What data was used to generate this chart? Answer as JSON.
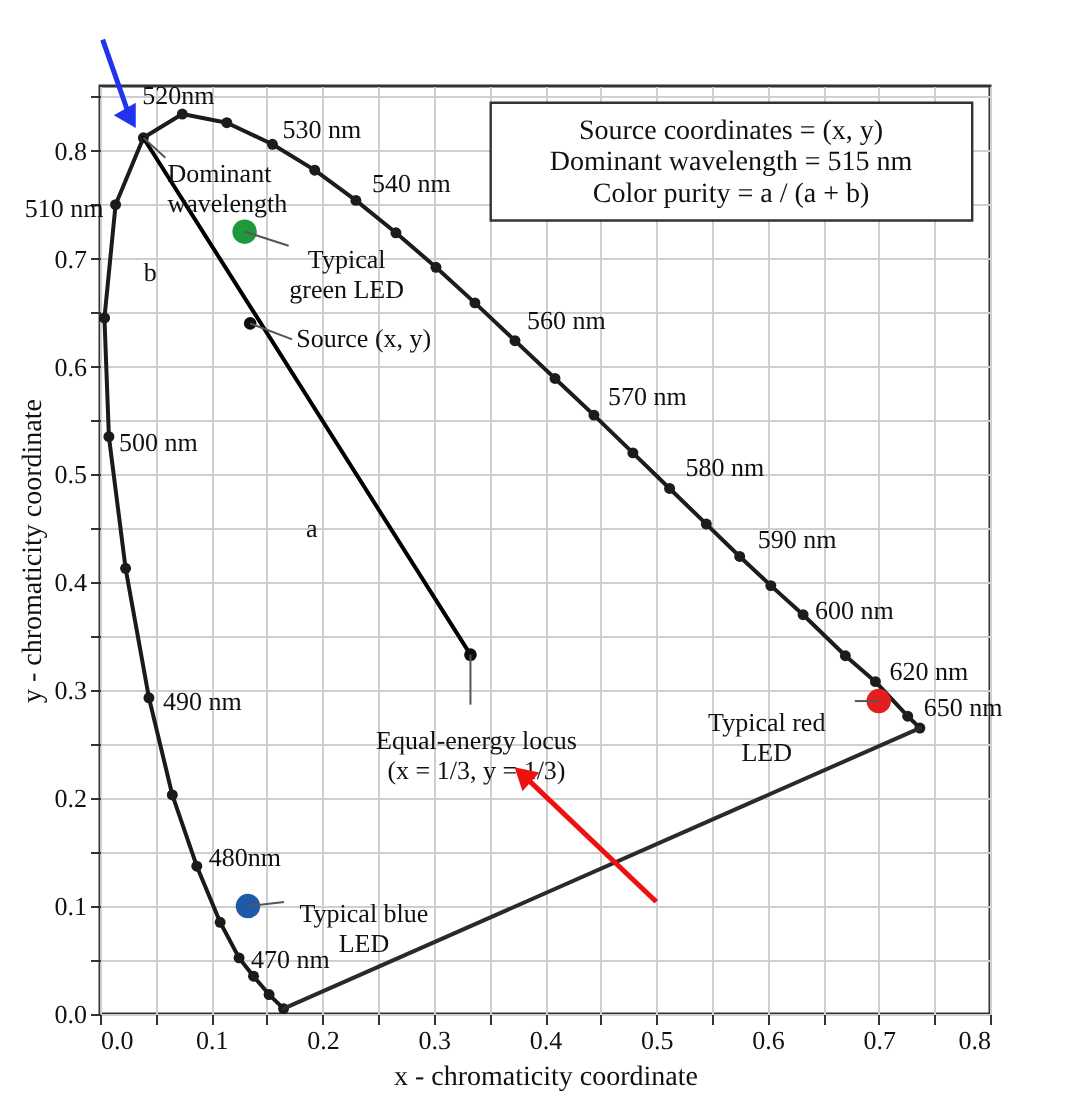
{
  "chart_data": {
    "type": "line",
    "xlabel": "x - chromaticity coordinate",
    "ylabel": "y - chromaticity coordinate",
    "xlim": [
      0,
      0.8
    ],
    "ylim": [
      0,
      0.86
    ],
    "xticks": [
      {
        "value": 0,
        "label": "0.0"
      },
      {
        "value": 0.05,
        "label": null
      },
      {
        "value": 0.1,
        "label": "0.1"
      },
      {
        "value": 0.15,
        "label": null
      },
      {
        "value": 0.2,
        "label": "0.2"
      },
      {
        "value": 0.25,
        "label": null
      },
      {
        "value": 0.3,
        "label": "0.3"
      },
      {
        "value": 0.35,
        "label": null
      },
      {
        "value": 0.4,
        "label": "0.4"
      },
      {
        "value": 0.45,
        "label": null
      },
      {
        "value": 0.5,
        "label": "0.5"
      },
      {
        "value": 0.55,
        "label": null
      },
      {
        "value": 0.6,
        "label": "0.6"
      },
      {
        "value": 0.65,
        "label": null
      },
      {
        "value": 0.7,
        "label": "0.7"
      },
      {
        "value": 0.75,
        "label": null
      },
      {
        "value": 0.8,
        "label": "0.8"
      }
    ],
    "yticks": [
      {
        "value": 0,
        "label": "0.0"
      },
      {
        "value": 0.05,
        "label": null
      },
      {
        "value": 0.1,
        "label": "0.1"
      },
      {
        "value": 0.15,
        "label": null
      },
      {
        "value": 0.2,
        "label": "0.2"
      },
      {
        "value": 0.25,
        "label": null
      },
      {
        "value": 0.3,
        "label": "0.3"
      },
      {
        "value": 0.35,
        "label": null
      },
      {
        "value": 0.4,
        "label": "0.4"
      },
      {
        "value": 0.45,
        "label": null
      },
      {
        "value": 0.5,
        "label": "0.5"
      },
      {
        "value": 0.55,
        "label": null
      },
      {
        "value": 0.6,
        "label": "0.6"
      },
      {
        "value": 0.65,
        "label": null
      },
      {
        "value": 0.7,
        "label": "0.7"
      },
      {
        "value": 0.75,
        "label": null
      },
      {
        "value": 0.8,
        "label": "0.8"
      },
      {
        "value": 0.85,
        "label": null
      }
    ],
    "grid": true,
    "series": [
      {
        "color": "#1a1a1a",
        "marker": "circle",
        "x": [
          0.165,
          0.152,
          0.138,
          0.125,
          0.108,
          0.087,
          0.065,
          0.044,
          0.023,
          0.008,
          0.004
        ],
        "values": [
          0.005,
          0.018,
          0.035,
          0.052,
          0.085,
          0.137,
          0.203,
          0.293,
          0.413,
          0.535,
          0.645
        ]
      },
      {
        "color": "#1c1c1c",
        "marker": "circle",
        "x": [
          0.004,
          0.014,
          0.039,
          0.074,
          0.114,
          0.155,
          0.193,
          0.23,
          0.266,
          0.302,
          0.337,
          0.373,
          0.409,
          0.444,
          0.479,
          0.512,
          0.545,
          0.575,
          0.603,
          0.632,
          0.67,
          0.697,
          0.726,
          0.737
        ],
        "values": [
          0.645,
          0.75,
          0.812,
          0.834,
          0.826,
          0.806,
          0.782,
          0.754,
          0.724,
          0.692,
          0.659,
          0.624,
          0.589,
          0.555,
          0.52,
          0.487,
          0.454,
          0.424,
          0.397,
          0.37,
          0.332,
          0.308,
          0.276,
          0.265
        ]
      },
      {
        "color": "#2a2a2a",
        "marker": "none",
        "x": [
          0.165,
          0.737
        ],
        "values": [
          0.005,
          0.265
        ]
      },
      {
        "color": "#000000",
        "marker": "none",
        "x": [
          0.039,
          0.333
        ],
        "values": [
          0.812,
          0.333
        ]
      },
      {
        "type": "scatter",
        "color": "#0d0d0d",
        "marker": "circle",
        "x": [
          0.135,
          0.333
        ],
        "values": [
          0.64,
          0.333
        ]
      },
      {
        "type": "scatter",
        "color": "#1e9a3c",
        "marker": "circle",
        "x": [
          0.13
        ],
        "values": [
          0.725
        ]
      },
      {
        "type": "scatter",
        "color": "#1f5aa8",
        "marker": "circle",
        "x": [
          0.133
        ],
        "values": [
          0.1
        ]
      },
      {
        "type": "scatter",
        "color": "#e41e1e",
        "marker": "circle",
        "x": [
          0.7
        ],
        "values": [
          0.29
        ]
      }
    ],
    "annotations": [
      "Source coordinates = (x, y)",
      "Dominant wavelength = 515 nm",
      "Color purity  =  a / (a + b)",
      {
        "text": "520nm",
        "x": 0.074,
        "y": 0.834
      },
      {
        "text": "530 nm",
        "x": 0.155,
        "y": 0.806
      },
      {
        "text": "540 nm",
        "x": 0.23,
        "y": 0.754
      },
      {
        "text": "510 nm",
        "x": 0.014,
        "y": 0.75
      },
      {
        "text": "Dominant\nwavelength",
        "x": 0.039,
        "y": 0.812
      },
      {
        "text": "Typical\ngreen LED",
        "x": 0.13,
        "y": 0.725
      },
      {
        "text": "Source (x, y)",
        "x": 0.135,
        "y": 0.64
      },
      {
        "text": "560 nm",
        "x": 0.373,
        "y": 0.624
      },
      {
        "text": "570 nm",
        "x": 0.444,
        "y": 0.555
      },
      {
        "text": "580 nm",
        "x": 0.512,
        "y": 0.487
      },
      {
        "text": "590 nm",
        "x": 0.575,
        "y": 0.424
      },
      {
        "text": "600 nm",
        "x": 0.632,
        "y": 0.37
      },
      {
        "text": "620 nm",
        "x": 0.697,
        "y": 0.308
      },
      {
        "text": "650 nm",
        "x": 0.726,
        "y": 0.276
      },
      {
        "text": "Typical red\nLED",
        "x": 0.7,
        "y": 0.29
      },
      {
        "text": "500 nm",
        "x": 0.008,
        "y": 0.535
      },
      {
        "text": "490 nm",
        "x": 0.044,
        "y": 0.293
      },
      {
        "text": "480nm",
        "x": 0.087,
        "y": 0.137
      },
      {
        "text": "Typical blue\nLED",
        "x": 0.133,
        "y": 0.1
      },
      {
        "text": "470 nm",
        "x": 0.125,
        "y": 0.052
      },
      {
        "text": "Equal-energy locus\n(x = 1/3, y = 1/3)",
        "x": 0.333,
        "y": 0.333
      },
      {
        "text": "a",
        "x": 0.23,
        "y": 0.501
      },
      {
        "text": "b",
        "x": 0.09,
        "y": 0.729
      }
    ]
  }
}
